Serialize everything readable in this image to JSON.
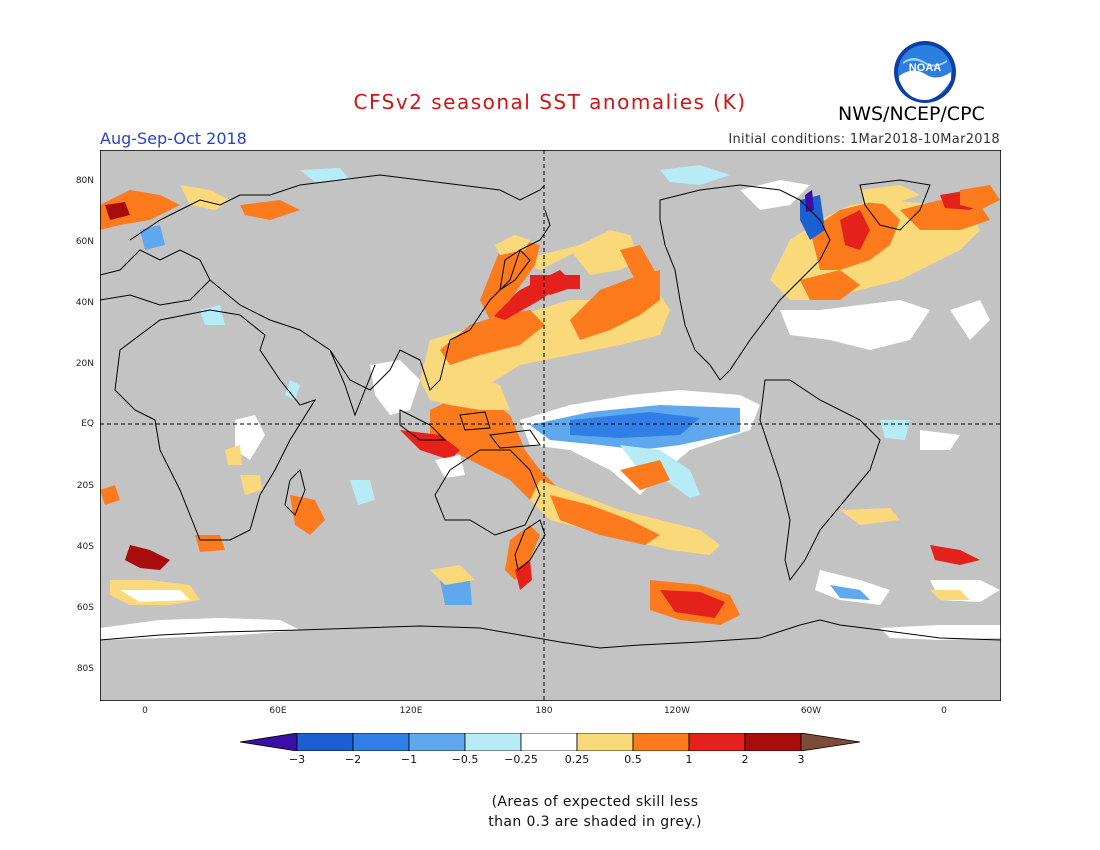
{
  "title": "CFSv2 seasonal SST anomalies (K)",
  "agency": "NWS/NCEP/CPC",
  "logo_text": "NOAA",
  "period": "Aug-Sep-Oct 2018",
  "initial_conditions": "Initial conditions: 1Mar2018-10Mar2018",
  "lat_labels": [
    "80N",
    "60N",
    "40N",
    "20N",
    "EQ",
    "20S",
    "40S",
    "60S",
    "80S"
  ],
  "lon_labels": [
    "0",
    "60E",
    "120E",
    "180",
    "120W",
    "60W",
    "0"
  ],
  "colorbar": {
    "labels": [
      "−3",
      "−2",
      "−1",
      "−0.5",
      "−0.25",
      "0.25",
      "0.5",
      "1",
      "2",
      "3"
    ],
    "colors": [
      "#3a0fa8",
      "#1c5fd3",
      "#2f7fe6",
      "#5fa8ee",
      "#b7ecf7",
      "#ffffff",
      "#f9d97a",
      "#fd7b1d",
      "#e5211b",
      "#a80c0c",
      "#7d4b3a"
    ]
  },
  "note": "(Areas of expected skill less\nthan 0.3 are shaded in grey.)",
  "colors": {
    "grey_mask": "#c3c3c3",
    "title": "#d01515",
    "period": "#2646c8"
  }
}
